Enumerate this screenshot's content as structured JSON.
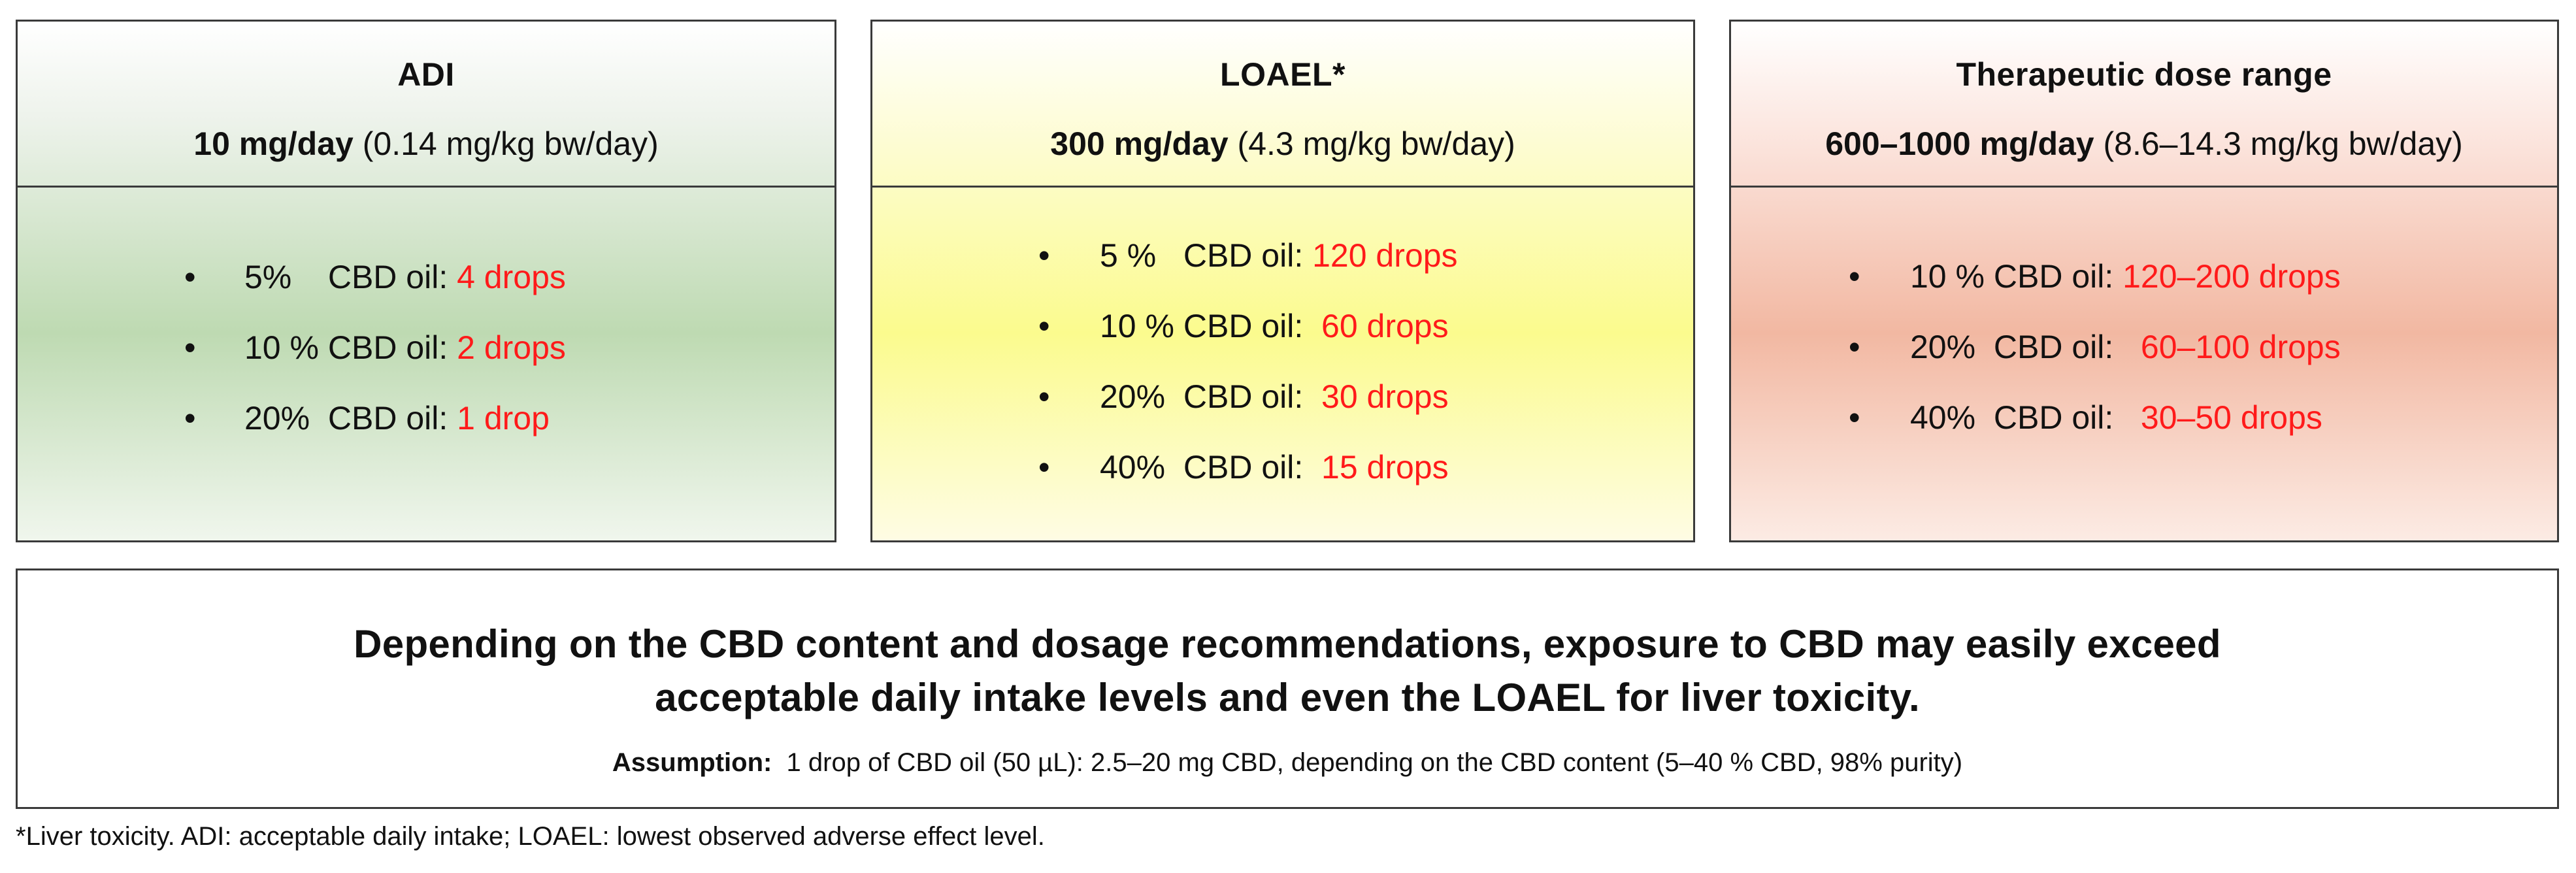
{
  "panels": {
    "adi": {
      "title": "ADI",
      "dose_bold": "10 mg/day",
      "dose_rest": " (0.14 mg/kg bw/day)",
      "bullet": "•",
      "items": [
        {
          "label": "5%    CBD oil: ",
          "value": "4 drops"
        },
        {
          "label": "10 % CBD oil: ",
          "value": "2 drops"
        },
        {
          "label": "20%  CBD oil: ",
          "value": "1 drop"
        }
      ]
    },
    "loael": {
      "title": "LOAEL*",
      "dose_bold": "300 mg/day",
      "dose_rest": " (4.3 mg/kg bw/day)",
      "bullet": "•",
      "items": [
        {
          "label": "5 %   CBD oil: ",
          "value": "120 drops"
        },
        {
          "label": "10 % CBD oil:  ",
          "value": "60 drops"
        },
        {
          "label": "20%  CBD oil:  ",
          "value": "30 drops"
        },
        {
          "label": "40%  CBD oil:  ",
          "value": "15 drops"
        }
      ]
    },
    "therapeutic": {
      "title": "Therapeutic dose range",
      "dose_bold": "600–1000 mg/day",
      "dose_rest": " (8.6–14.3 mg/kg bw/day)",
      "bullet": "•",
      "items": [
        {
          "label": "10 % CBD oil: ",
          "value": "120–200 drops"
        },
        {
          "label": "20%  CBD oil:   ",
          "value": "60–100 drops"
        },
        {
          "label": "40%  CBD oil:   ",
          "value": "30–50 drops"
        }
      ]
    }
  },
  "conclusion": {
    "line1": "Depending on the CBD content and dosage recommendations, exposure to CBD may easily exceed",
    "line2": "acceptable daily intake levels and even the LOAEL for liver toxicity.",
    "assumption_label": "Assumption:",
    "assumption_text": "  1 drop of CBD oil (50 µL): 2.5–20 mg CBD, depending on the CBD content (5–40 % CBD, 98% purity)"
  },
  "footnote": "*Liver toxicity. ADI: acceptable daily intake; LOAEL: lowest observed adverse effect level.",
  "colors": {
    "highlight": "#ff1a1a",
    "adi_fill": "#bedab2",
    "loael_fill": "#fbfb8e",
    "therapeutic_fill": "#f2b8a2"
  }
}
